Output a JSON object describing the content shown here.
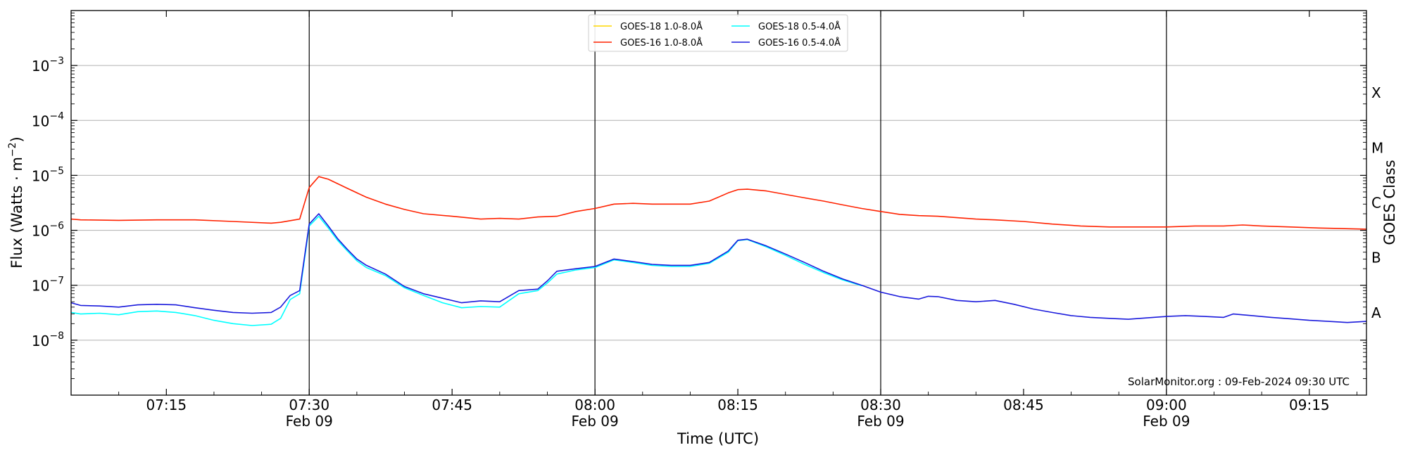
{
  "chart_data": {
    "type": "line",
    "y_scale": "log",
    "ylim": [
      1e-09,
      0.01
    ],
    "x_range": [
      "07:05",
      "09:21"
    ],
    "xlabel": "Time (UTC)",
    "ylabel": "Flux (Watts · m",
    "ylabel_superscript": "−2",
    "ylabel_suffix": ")",
    "right_ylabel": "GOES Class",
    "grid": "horizontal at decades",
    "legend_position": "top-center",
    "annotation": "SolarMonitor.org : 09-Feb-2024 09:30 UTC",
    "y_ticks": [
      {
        "value": 1e-08,
        "base": "10",
        "exp": "−8"
      },
      {
        "value": 1e-07,
        "base": "10",
        "exp": "−7"
      },
      {
        "value": 1e-06,
        "base": "10",
        "exp": "−6"
      },
      {
        "value": 1e-05,
        "base": "10",
        "exp": "−5"
      },
      {
        "value": 0.0001,
        "base": "10",
        "exp": "−4"
      },
      {
        "value": 0.001,
        "base": "10",
        "exp": "−3"
      }
    ],
    "x_ticks": [
      {
        "time": "07:15",
        "label": "07:15",
        "sublabel": ""
      },
      {
        "time": "07:30",
        "label": "07:30",
        "sublabel": "Feb 09"
      },
      {
        "time": "07:45",
        "label": "07:45",
        "sublabel": ""
      },
      {
        "time": "08:00",
        "label": "08:00",
        "sublabel": "Feb 09"
      },
      {
        "time": "08:15",
        "label": "08:15",
        "sublabel": ""
      },
      {
        "time": "08:30",
        "label": "08:30",
        "sublabel": "Feb 09"
      },
      {
        "time": "08:45",
        "label": "08:45",
        "sublabel": ""
      },
      {
        "time": "09:00",
        "label": "09:00",
        "sublabel": "Feb 09"
      },
      {
        "time": "09:15",
        "label": "09:15",
        "sublabel": ""
      }
    ],
    "vertical_lines": [
      "07:30",
      "08:00",
      "08:30",
      "09:00"
    ],
    "goes_classes": [
      {
        "label": "A",
        "value": 1e-08
      },
      {
        "label": "B",
        "value": 1e-07
      },
      {
        "label": "C",
        "value": 1e-06
      },
      {
        "label": "M",
        "value": 1e-05
      },
      {
        "label": "X",
        "value": 0.0001
      }
    ],
    "series": [
      {
        "name": "GOES-18 1.0-8.0Å",
        "color": "#ffd700",
        "points": []
      },
      {
        "name": "GOES-18 0.5-4.0Å",
        "color": "#00ffff",
        "points": [
          [
            "07:05",
            3.2e-08
          ],
          [
            "07:06",
            3e-08
          ],
          [
            "07:08",
            3.1e-08
          ],
          [
            "07:10",
            2.9e-08
          ],
          [
            "07:12",
            3.3e-08
          ],
          [
            "07:14",
            3.4e-08
          ],
          [
            "07:16",
            3.2e-08
          ],
          [
            "07:18",
            2.8e-08
          ],
          [
            "07:20",
            2.3e-08
          ],
          [
            "07:22",
            2e-08
          ],
          [
            "07:24",
            1.85e-08
          ],
          [
            "07:26",
            1.95e-08
          ],
          [
            "07:27",
            2.5e-08
          ],
          [
            "07:28",
            5.5e-08
          ],
          [
            "07:29",
            7e-08
          ],
          [
            "07:30",
            1.2e-06
          ],
          [
            "07:31",
            1.8e-06
          ],
          [
            "07:32",
            1.1e-06
          ],
          [
            "07:33",
            6.5e-07
          ],
          [
            "07:34",
            4.2e-07
          ],
          [
            "07:35",
            2.8e-07
          ],
          [
            "07:36",
            2.1e-07
          ],
          [
            "07:38",
            1.5e-07
          ],
          [
            "07:40",
            9e-08
          ],
          [
            "07:42",
            6.5e-08
          ],
          [
            "07:44",
            4.8e-08
          ],
          [
            "07:46",
            3.9e-08
          ],
          [
            "07:48",
            4.1e-08
          ],
          [
            "07:50",
            4e-08
          ],
          [
            "07:52",
            7e-08
          ],
          [
            "07:54",
            8e-08
          ],
          [
            "07:55",
            1.1e-07
          ],
          [
            "07:56",
            1.6e-07
          ],
          [
            "07:58",
            1.9e-07
          ],
          [
            "08:00",
            2.1e-07
          ],
          [
            "08:02",
            2.9e-07
          ],
          [
            "08:04",
            2.6e-07
          ],
          [
            "08:06",
            2.3e-07
          ],
          [
            "08:08",
            2.2e-07
          ],
          [
            "08:10",
            2.2e-07
          ],
          [
            "08:12",
            2.5e-07
          ],
          [
            "08:14",
            4e-07
          ],
          [
            "08:15",
            6.5e-07
          ],
          [
            "08:16",
            6.8e-07
          ],
          [
            "08:18",
            5e-07
          ],
          [
            "08:20",
            3.5e-07
          ],
          [
            "08:22",
            2.4e-07
          ],
          [
            "08:24",
            1.7e-07
          ],
          [
            "08:26",
            1.25e-07
          ],
          [
            "08:28",
            9.8e-08
          ]
        ]
      },
      {
        "name": "GOES-16 1.0-8.0Å",
        "color": "#ff2200",
        "points": [
          [
            "07:05",
            1.6e-06
          ],
          [
            "07:06",
            1.55e-06
          ],
          [
            "07:10",
            1.52e-06
          ],
          [
            "07:14",
            1.55e-06
          ],
          [
            "07:18",
            1.55e-06
          ],
          [
            "07:22",
            1.45e-06
          ],
          [
            "07:26",
            1.35e-06
          ],
          [
            "07:27",
            1.4e-06
          ],
          [
            "07:29",
            1.6e-06
          ],
          [
            "07:30",
            6e-06
          ],
          [
            "07:31",
            9.5e-06
          ],
          [
            "07:32",
            8.5e-06
          ],
          [
            "07:34",
            5.8e-06
          ],
          [
            "07:36",
            4e-06
          ],
          [
            "07:38",
            3e-06
          ],
          [
            "07:40",
            2.4e-06
          ],
          [
            "07:42",
            2e-06
          ],
          [
            "07:45",
            1.8e-06
          ],
          [
            "07:48",
            1.6e-06
          ],
          [
            "07:50",
            1.65e-06
          ],
          [
            "07:52",
            1.6e-06
          ],
          [
            "07:54",
            1.75e-06
          ],
          [
            "07:56",
            1.8e-06
          ],
          [
            "07:58",
            2.2e-06
          ],
          [
            "08:00",
            2.5e-06
          ],
          [
            "08:02",
            3e-06
          ],
          [
            "08:04",
            3.1e-06
          ],
          [
            "08:06",
            3e-06
          ],
          [
            "08:08",
            3e-06
          ],
          [
            "08:10",
            3e-06
          ],
          [
            "08:12",
            3.4e-06
          ],
          [
            "08:14",
            4.8e-06
          ],
          [
            "08:15",
            5.5e-06
          ],
          [
            "08:16",
            5.6e-06
          ],
          [
            "08:18",
            5.2e-06
          ],
          [
            "08:20",
            4.5e-06
          ],
          [
            "08:22",
            3.9e-06
          ],
          [
            "08:24",
            3.4e-06
          ],
          [
            "08:26",
            2.9e-06
          ],
          [
            "08:28",
            2.5e-06
          ],
          [
            "08:30",
            2.2e-06
          ],
          [
            "08:32",
            1.95e-06
          ],
          [
            "08:34",
            1.85e-06
          ],
          [
            "08:36",
            1.8e-06
          ],
          [
            "08:38",
            1.7e-06
          ],
          [
            "08:40",
            1.6e-06
          ],
          [
            "08:42",
            1.55e-06
          ],
          [
            "08:45",
            1.45e-06
          ],
          [
            "08:48",
            1.3e-06
          ],
          [
            "08:51",
            1.2e-06
          ],
          [
            "08:54",
            1.15e-06
          ],
          [
            "08:57",
            1.15e-06
          ],
          [
            "09:00",
            1.15e-06
          ],
          [
            "09:03",
            1.2e-06
          ],
          [
            "09:06",
            1.2e-06
          ],
          [
            "09:08",
            1.25e-06
          ],
          [
            "09:10",
            1.2e-06
          ],
          [
            "09:13",
            1.15e-06
          ],
          [
            "09:16",
            1.1e-06
          ],
          [
            "09:21",
            1.05e-06
          ]
        ]
      },
      {
        "name": "GOES-16 0.5-4.0Å",
        "color": "#1a1adc",
        "points": [
          [
            "07:05",
            4.8e-08
          ],
          [
            "07:06",
            4.3e-08
          ],
          [
            "07:08",
            4.2e-08
          ],
          [
            "07:10",
            4e-08
          ],
          [
            "07:12",
            4.4e-08
          ],
          [
            "07:14",
            4.5e-08
          ],
          [
            "07:16",
            4.4e-08
          ],
          [
            "07:18",
            3.9e-08
          ],
          [
            "07:20",
            3.5e-08
          ],
          [
            "07:22",
            3.2e-08
          ],
          [
            "07:24",
            3.1e-08
          ],
          [
            "07:26",
            3.2e-08
          ],
          [
            "07:27",
            4e-08
          ],
          [
            "07:28",
            6.5e-08
          ],
          [
            "07:29",
            8e-08
          ],
          [
            "07:30",
            1.3e-06
          ],
          [
            "07:31",
            2e-06
          ],
          [
            "07:32",
            1.2e-06
          ],
          [
            "07:33",
            7e-07
          ],
          [
            "07:34",
            4.5e-07
          ],
          [
            "07:35",
            3e-07
          ],
          [
            "07:36",
            2.3e-07
          ],
          [
            "07:38",
            1.6e-07
          ],
          [
            "07:40",
            9.5e-08
          ],
          [
            "07:42",
            7e-08
          ],
          [
            "07:44",
            5.8e-08
          ],
          [
            "07:46",
            4.8e-08
          ],
          [
            "07:48",
            5.2e-08
          ],
          [
            "07:50",
            5e-08
          ],
          [
            "07:52",
            8e-08
          ],
          [
            "07:54",
            8.5e-08
          ],
          [
            "07:55",
            1.2e-07
          ],
          [
            "07:56",
            1.8e-07
          ],
          [
            "07:58",
            2e-07
          ],
          [
            "08:00",
            2.2e-07
          ],
          [
            "08:02",
            3e-07
          ],
          [
            "08:04",
            2.7e-07
          ],
          [
            "08:06",
            2.4e-07
          ],
          [
            "08:08",
            2.3e-07
          ],
          [
            "08:10",
            2.3e-07
          ],
          [
            "08:12",
            2.6e-07
          ],
          [
            "08:14",
            4.2e-07
          ],
          [
            "08:15",
            6.6e-07
          ],
          [
            "08:16",
            6.9e-07
          ],
          [
            "08:18",
            5.2e-07
          ],
          [
            "08:20",
            3.7e-07
          ],
          [
            "08:22",
            2.6e-07
          ],
          [
            "08:24",
            1.8e-07
          ],
          [
            "08:26",
            1.3e-07
          ],
          [
            "08:28",
            1e-07
          ],
          [
            "08:30",
            7.5e-08
          ],
          [
            "08:32",
            6.2e-08
          ],
          [
            "08:34",
            5.6e-08
          ],
          [
            "08:35",
            6.3e-08
          ],
          [
            "08:36",
            6.2e-08
          ],
          [
            "08:38",
            5.3e-08
          ],
          [
            "08:40",
            5e-08
          ],
          [
            "08:42",
            5.3e-08
          ],
          [
            "08:44",
            4.5e-08
          ],
          [
            "08:46",
            3.7e-08
          ],
          [
            "08:48",
            3.2e-08
          ],
          [
            "08:50",
            2.8e-08
          ],
          [
            "08:52",
            2.6e-08
          ],
          [
            "08:54",
            2.5e-08
          ],
          [
            "08:56",
            2.4e-08
          ],
          [
            "08:58",
            2.55e-08
          ],
          [
            "09:00",
            2.7e-08
          ],
          [
            "09:02",
            2.8e-08
          ],
          [
            "09:04",
            2.7e-08
          ],
          [
            "09:06",
            2.6e-08
          ],
          [
            "09:07",
            3e-08
          ],
          [
            "09:09",
            2.8e-08
          ],
          [
            "09:11",
            2.6e-08
          ],
          [
            "09:13",
            2.45e-08
          ],
          [
            "09:15",
            2.3e-08
          ],
          [
            "09:17",
            2.2e-08
          ],
          [
            "09:19",
            2.1e-08
          ],
          [
            "09:21",
            2.2e-08
          ]
        ]
      }
    ]
  }
}
